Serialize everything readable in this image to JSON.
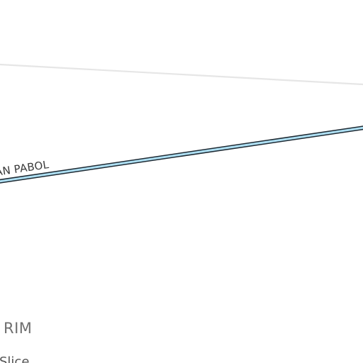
{
  "map": {
    "labels": {
      "road": "AN PABOL",
      "place_large": "RIM",
      "place_small": "Slice"
    },
    "colors": {
      "background": "#ffffff",
      "minor_road": "#e6e6e6",
      "highway_fill": "#aee0f4",
      "highway_casing": "#1e2a33",
      "label_dark": "#3a3a3a",
      "label_gray": "#6f6f6f"
    }
  }
}
